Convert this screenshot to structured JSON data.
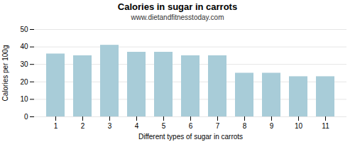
{
  "chart_data": {
    "type": "bar",
    "title": "Calories in sugar in carrots",
    "subtitle": "www.dietandfitnesstoday.com",
    "xlabel": "Different types of sugar in carrots",
    "ylabel": "Calories per 100g",
    "categories": [
      1,
      2,
      3,
      4,
      5,
      6,
      7,
      8,
      9,
      10,
      11
    ],
    "values": [
      36,
      35,
      41,
      37,
      37,
      35,
      35,
      25,
      25,
      23,
      23
    ],
    "color": "#a8ccd8",
    "ylim": [
      0,
      50
    ],
    "yticks": [
      0,
      10,
      20,
      30,
      40,
      50
    ],
    "grid": true
  }
}
